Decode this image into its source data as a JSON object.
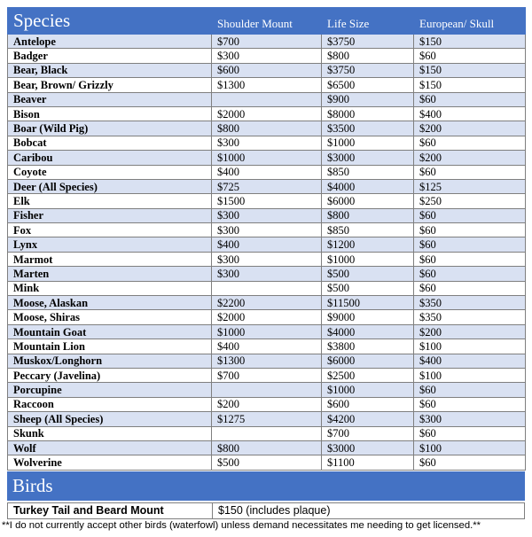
{
  "header": {
    "title": "Species",
    "columns": [
      "Shoulder Mount",
      "Life Size",
      "European/ Skull"
    ]
  },
  "rows": [
    {
      "name": "Antelope",
      "shoulder": "$700",
      "life": "$3750",
      "euro": "$150"
    },
    {
      "name": "Badger",
      "shoulder": "$300",
      "life": "$800",
      "euro": "$60"
    },
    {
      "name": "Bear, Black",
      "shoulder": "$600",
      "life": "$3750",
      "euro": "$150"
    },
    {
      "name": "Bear, Brown/ Grizzly",
      "shoulder": "$1300",
      "life": "$6500",
      "euro": "$150"
    },
    {
      "name": "Beaver",
      "shoulder": "",
      "life": "$900",
      "euro": "$60"
    },
    {
      "name": "Bison",
      "shoulder": "$2000",
      "life": "$8000",
      "euro": "$400"
    },
    {
      "name": "Boar (Wild Pig)",
      "shoulder": "$800",
      "life": "$3500",
      "euro": "$200"
    },
    {
      "name": "Bobcat",
      "shoulder": "$300",
      "life": "$1000",
      "euro": "$60"
    },
    {
      "name": "Caribou",
      "shoulder": "$1000",
      "life": "$3000",
      "euro": "$200"
    },
    {
      "name": "Coyote",
      "shoulder": "$400",
      "life": "$850",
      "euro": "$60"
    },
    {
      "name": "Deer (All Species)",
      "shoulder": "$725",
      "life": "$4000",
      "euro": "$125"
    },
    {
      "name": "Elk",
      "shoulder": "$1500",
      "life": "$6000",
      "euro": "$250"
    },
    {
      "name": "Fisher",
      "shoulder": "$300",
      "life": "$800",
      "euro": "$60"
    },
    {
      "name": "Fox",
      "shoulder": "$300",
      "life": "$850",
      "euro": "$60"
    },
    {
      "name": "Lynx",
      "shoulder": "$400",
      "life": "$1200",
      "euro": "$60"
    },
    {
      "name": "Marmot",
      "shoulder": "$300",
      "life": "$1000",
      "euro": "$60"
    },
    {
      "name": "Marten",
      "shoulder": "$300",
      "life": "$500",
      "euro": "$60"
    },
    {
      "name": "Mink",
      "shoulder": "",
      "life": "$500",
      "euro": "$60"
    },
    {
      "name": "Moose, Alaskan",
      "shoulder": "$2200",
      "life": "$11500",
      "euro": "$350"
    },
    {
      "name": "Moose, Shiras",
      "shoulder": "$2000",
      "life": "$9000",
      "euro": "$350"
    },
    {
      "name": "Mountain Goat",
      "shoulder": "$1000",
      "life": "$4000",
      "euro": "$200"
    },
    {
      "name": "Mountain Lion",
      "shoulder": "$400",
      "life": "$3800",
      "euro": "$100"
    },
    {
      "name": "Muskox/Longhorn",
      "shoulder": "$1300",
      "life": "$6000",
      "euro": "$400"
    },
    {
      "name": "Peccary (Javelina)",
      "shoulder": "$700",
      "life": "$2500",
      "euro": "$100"
    },
    {
      "name": "Porcupine",
      "shoulder": "",
      "life": "$1000",
      "euro": "$60"
    },
    {
      "name": "Raccoon",
      "shoulder": "$200",
      "life": "$600",
      "euro": "$60"
    },
    {
      "name": "Sheep (All Species)",
      "shoulder": "$1275",
      "life": "$4200",
      "euro": "$300"
    },
    {
      "name": "Skunk",
      "shoulder": "",
      "life": "$700",
      "euro": "$60"
    },
    {
      "name": "Wolf",
      "shoulder": "$800",
      "life": "$3000",
      "euro": "$100"
    },
    {
      "name": "Wolverine",
      "shoulder": "$500",
      "life": "$1100",
      "euro": "$60"
    }
  ],
  "birds": {
    "title": "Birds",
    "item": "Turkey Tail and Beard Mount",
    "price": "$150 (includes plaque)"
  },
  "note": "**I do not currently accept other birds (waterfowl) unless demand necessitates me needing to get licensed.**",
  "colors": {
    "header": "#4472c4",
    "band": "#d9e1f2",
    "border": "#7f7f7f"
  }
}
